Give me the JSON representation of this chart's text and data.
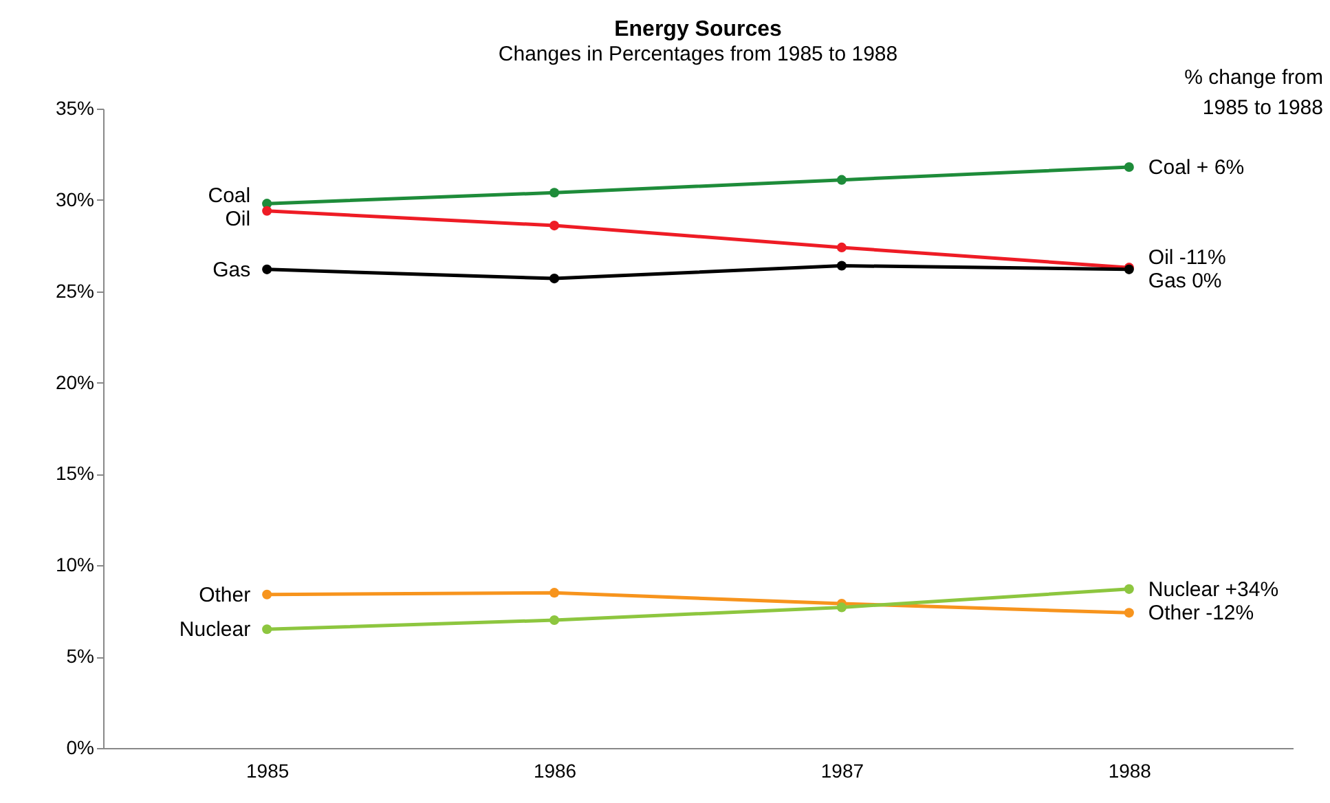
{
  "chart_data": {
    "type": "line",
    "title": "Energy Sources",
    "subtitle": "Changes in Percentages from 1985 to 1988",
    "categories": [
      "1985",
      "1986",
      "1987",
      "1988"
    ],
    "series": [
      {
        "name": "Coal",
        "color": "#1e8c3a",
        "values": [
          29.8,
          30.4,
          31.1,
          31.8
        ]
      },
      {
        "name": "Oil",
        "color": "#ee1c25",
        "values": [
          29.4,
          28.6,
          27.4,
          26.3
        ]
      },
      {
        "name": "Gas",
        "color": "#000000",
        "values": [
          26.2,
          25.7,
          26.4,
          26.2
        ]
      },
      {
        "name": "Other",
        "color": "#f7941d",
        "values": [
          8.4,
          8.5,
          7.9,
          7.4
        ]
      },
      {
        "name": "Nuclear",
        "color": "#8dc63f",
        "values": [
          6.5,
          7.0,
          7.7,
          8.7
        ]
      }
    ],
    "ylim": [
      0,
      35
    ],
    "yticks": [
      {
        "value": 0,
        "label": "0%"
      },
      {
        "value": 5,
        "label": "5%"
      },
      {
        "value": 10,
        "label": "10%"
      },
      {
        "value": 15,
        "label": "15%"
      },
      {
        "value": 20,
        "label": "20%"
      },
      {
        "value": 25,
        "label": "25%"
      },
      {
        "value": 30,
        "label": "30%"
      },
      {
        "value": 35,
        "label": "35%"
      }
    ],
    "annotations": [
      "% change from\n1985 to 1988",
      {
        "text": "Coal + 6%",
        "x": "1988",
        "y": 31.8
      },
      {
        "text": "Oil -11%",
        "x": "1988",
        "y": 26.3
      },
      {
        "text": "Gas 0%",
        "x": "1988",
        "y": 26.2
      },
      {
        "text": "Nuclear +34%",
        "x": "1988",
        "y": 8.7
      },
      {
        "text": "Other -12%",
        "x": "1988",
        "y": 7.4
      }
    ],
    "marker": "circle",
    "line_style": "solid",
    "grid": false,
    "legend": false
  }
}
